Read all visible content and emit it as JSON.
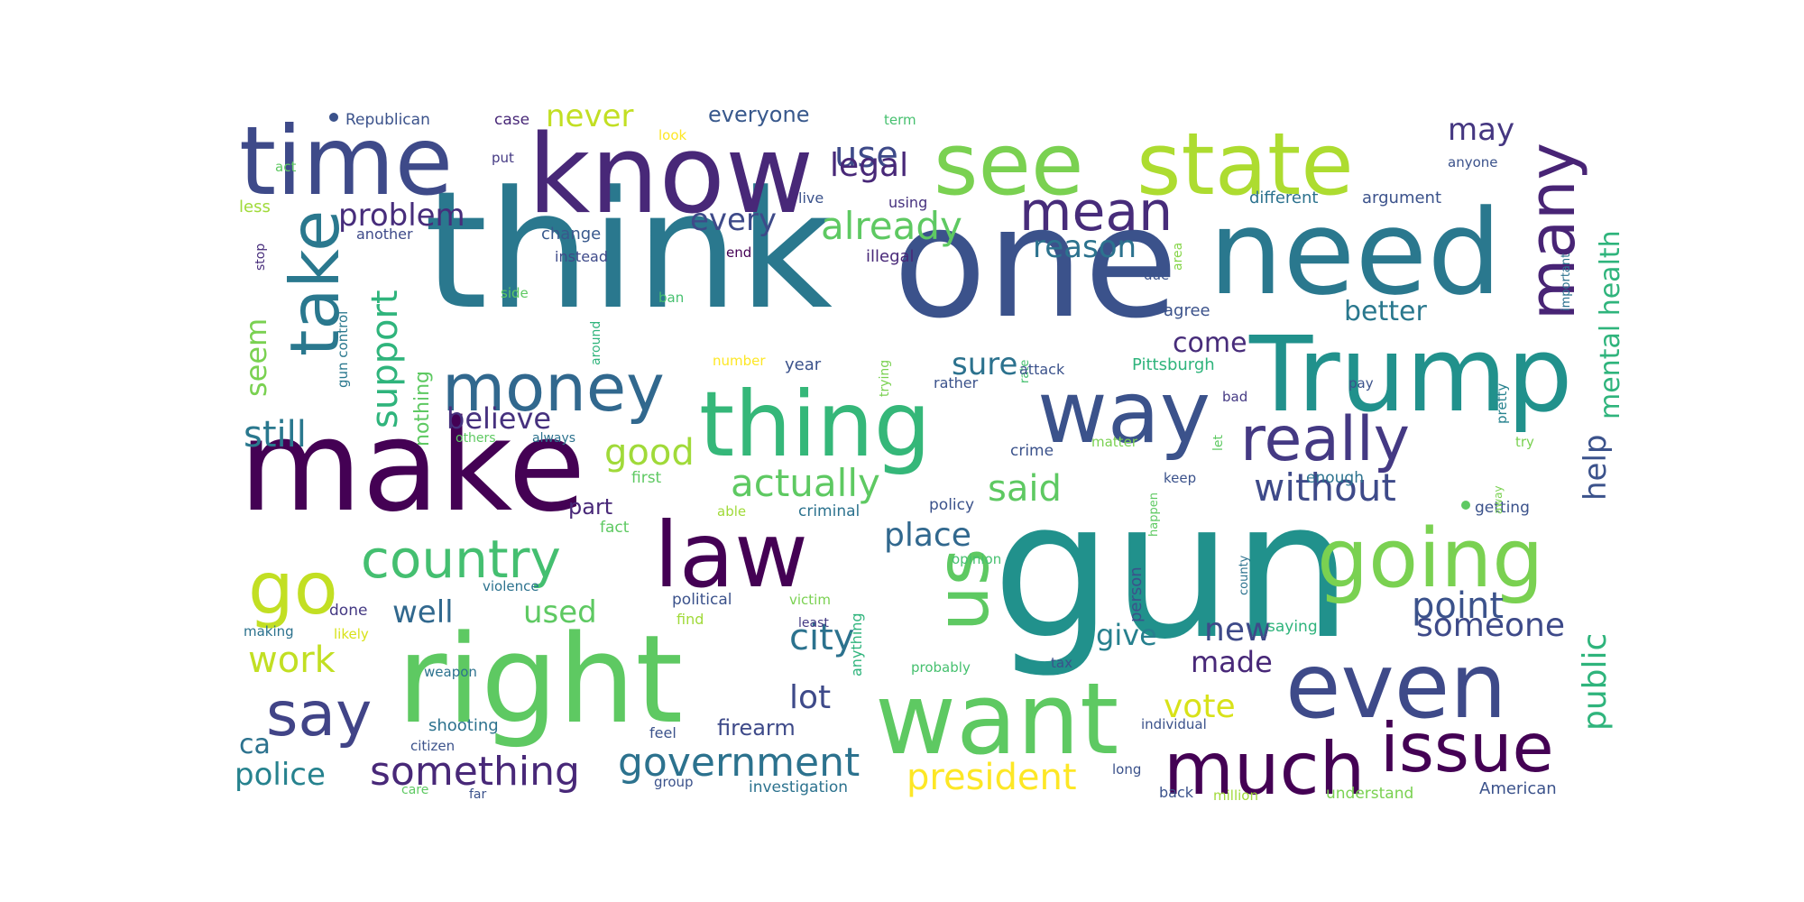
{
  "wordcloud": {
    "words": [
      {
        "text": "gun",
        "color": "#21918c"
      },
      {
        "text": "think",
        "color": "#2a788e"
      },
      {
        "text": "one",
        "color": "#3b528b"
      },
      {
        "text": "make",
        "color": "#440154"
      },
      {
        "text": "right",
        "color": "#5ec962"
      },
      {
        "text": "need",
        "color": "#2a788e"
      },
      {
        "text": "Trump",
        "color": "#21918c"
      },
      {
        "text": "know",
        "color": "#482878"
      },
      {
        "text": "see",
        "color": "#7ad151"
      },
      {
        "text": "state",
        "color": "#addc30"
      },
      {
        "text": "time",
        "color": "#3e4a89"
      },
      {
        "text": "want",
        "color": "#5ec962"
      },
      {
        "text": "thing",
        "color": "#35b779"
      },
      {
        "text": "law",
        "color": "#440154"
      },
      {
        "text": "way",
        "color": "#3b528b"
      },
      {
        "text": "even",
        "color": "#3e4a89"
      },
      {
        "text": "going",
        "color": "#7ad151"
      },
      {
        "text": "much",
        "color": "#440154"
      },
      {
        "text": "issue",
        "color": "#440154"
      },
      {
        "text": "us",
        "color": "#5ec962"
      },
      {
        "text": "take",
        "color": "#2a788e"
      },
      {
        "text": "money",
        "color": "#31688e"
      },
      {
        "text": "mean",
        "color": "#472c7a"
      },
      {
        "text": "many",
        "color": "#482475"
      },
      {
        "text": "go",
        "color": "#c2df23"
      },
      {
        "text": "say",
        "color": "#414487"
      },
      {
        "text": "really",
        "color": "#443983"
      },
      {
        "text": "country",
        "color": "#44bf70"
      },
      {
        "text": "government",
        "color": "#2c728e"
      },
      {
        "text": "something",
        "color": "#482878"
      },
      {
        "text": "president",
        "color": "#fde725"
      },
      {
        "text": "actually",
        "color": "#5ec962"
      },
      {
        "text": "without",
        "color": "#3e4a89"
      },
      {
        "text": "already",
        "color": "#5ec962"
      },
      {
        "text": "problem",
        "color": "#472d7b"
      },
      {
        "text": "good",
        "color": "#a0da39"
      },
      {
        "text": "said",
        "color": "#5ec962"
      },
      {
        "text": "support",
        "color": "#2fb47c"
      },
      {
        "text": "point",
        "color": "#3b528b"
      },
      {
        "text": "still",
        "color": "#2a788e"
      },
      {
        "text": "city",
        "color": "#2c728e"
      },
      {
        "text": "place",
        "color": "#31688e"
      },
      {
        "text": "use",
        "color": "#3e4a89"
      },
      {
        "text": "legal",
        "color": "#482878"
      },
      {
        "text": "reason",
        "color": "#2c728e"
      },
      {
        "text": "mental health",
        "color": "#2fb47c"
      },
      {
        "text": "someone",
        "color": "#3e4a89"
      },
      {
        "text": "well",
        "color": "#31688e"
      },
      {
        "text": "used",
        "color": "#5ec962"
      },
      {
        "text": "work",
        "color": "#c2df23"
      },
      {
        "text": "police",
        "color": "#26828e"
      },
      {
        "text": "lot",
        "color": "#3e4a89"
      },
      {
        "text": "vote",
        "color": "#d8e219"
      },
      {
        "text": "public",
        "color": "#2fb47c"
      },
      {
        "text": "help",
        "color": "#3b528b"
      },
      {
        "text": "believe",
        "color": "#46317e"
      },
      {
        "text": "sure",
        "color": "#2c728e"
      },
      {
        "text": "new",
        "color": "#3e4a89"
      },
      {
        "text": "made",
        "color": "#482878"
      },
      {
        "text": "give",
        "color": "#27808e"
      },
      {
        "text": "better",
        "color": "#2a788e"
      },
      {
        "text": "come",
        "color": "#472c7a"
      },
      {
        "text": "never",
        "color": "#c2df23"
      },
      {
        "text": "everyone",
        "color": "#38588c"
      },
      {
        "text": "every",
        "color": "#3e4a89"
      },
      {
        "text": "may",
        "color": "#453781"
      },
      {
        "text": "seem",
        "color": "#7ad151"
      },
      {
        "text": "ca",
        "color": "#2c728e"
      },
      {
        "text": "firearm",
        "color": "#3e4a89"
      },
      {
        "text": "part",
        "color": "#482878"
      },
      {
        "text": "nothing",
        "color": "#5ec962"
      },
      {
        "text": "Republican",
        "color": "#3b528b"
      },
      {
        "text": "case",
        "color": "#482878"
      },
      {
        "text": "term",
        "color": "#46c06f"
      },
      {
        "text": "look",
        "color": "#fde725"
      },
      {
        "text": "put",
        "color": "#443983"
      },
      {
        "text": "live",
        "color": "#3b528b"
      },
      {
        "text": "using",
        "color": "#46317e"
      },
      {
        "text": "act",
        "color": "#5ec962"
      },
      {
        "text": "less",
        "color": "#a0da39"
      },
      {
        "text": "change",
        "color": "#38588c"
      },
      {
        "text": "another",
        "color": "#3e4a89"
      },
      {
        "text": "instead",
        "color": "#3e4a89"
      },
      {
        "text": "end",
        "color": "#440154"
      },
      {
        "text": "illegal",
        "color": "#482878"
      },
      {
        "text": "different",
        "color": "#2c728e"
      },
      {
        "text": "argument",
        "color": "#3b528b"
      },
      {
        "text": "anyone",
        "color": "#3b528b"
      },
      {
        "text": "stop",
        "color": "#472d7b"
      },
      {
        "text": "gun control",
        "color": "#2a788e"
      },
      {
        "text": "side",
        "color": "#5ec962"
      },
      {
        "text": "area",
        "color": "#86d549"
      },
      {
        "text": "due",
        "color": "#3b528b"
      },
      {
        "text": "agree",
        "color": "#3b528b"
      },
      {
        "text": "ban",
        "color": "#46c06f"
      },
      {
        "text": "around",
        "color": "#2fb47c"
      },
      {
        "text": "trying",
        "color": "#7ad151"
      },
      {
        "text": "rate",
        "color": "#46c06f"
      },
      {
        "text": "important",
        "color": "#2c728e"
      },
      {
        "text": "pretty",
        "color": "#26828e"
      },
      {
        "text": "number",
        "color": "#fde725"
      },
      {
        "text": "year",
        "color": "#3b528b"
      },
      {
        "text": "rather",
        "color": "#3b528b"
      },
      {
        "text": "attack",
        "color": "#3b528b"
      },
      {
        "text": "Pittsburgh",
        "color": "#2fb47c"
      },
      {
        "text": "pay",
        "color": "#3b528b"
      },
      {
        "text": "bad",
        "color": "#443983"
      },
      {
        "text": "others",
        "color": "#5ec962"
      },
      {
        "text": "always",
        "color": "#2c728e"
      },
      {
        "text": "first",
        "color": "#5ec962"
      },
      {
        "text": "crime",
        "color": "#3b528b"
      },
      {
        "text": "matter",
        "color": "#7ad151"
      },
      {
        "text": "keep",
        "color": "#3b528b"
      },
      {
        "text": "let",
        "color": "#5ec962"
      },
      {
        "text": "enough",
        "color": "#2c728e"
      },
      {
        "text": "try",
        "color": "#7ad151"
      },
      {
        "text": "able",
        "color": "#a0da39"
      },
      {
        "text": "criminal",
        "color": "#2c728e"
      },
      {
        "text": "policy",
        "color": "#3b528b"
      },
      {
        "text": "happen",
        "color": "#5ec962"
      },
      {
        "text": "getting",
        "color": "#3b528b"
      },
      {
        "text": "away",
        "color": "#7ad151"
      },
      {
        "text": "fact",
        "color": "#5ec962"
      },
      {
        "text": "opinion",
        "color": "#46c06f"
      },
      {
        "text": "county",
        "color": "#2c728e"
      },
      {
        "text": "violence",
        "color": "#2c728e"
      },
      {
        "text": "political",
        "color": "#3b528b"
      },
      {
        "text": "victim",
        "color": "#7ad151"
      },
      {
        "text": "anything",
        "color": "#2fb47c"
      },
      {
        "text": "person",
        "color": "#3b528b"
      },
      {
        "text": "find",
        "color": "#a0da39"
      },
      {
        "text": "done",
        "color": "#443983"
      },
      {
        "text": "making",
        "color": "#2c728e"
      },
      {
        "text": "likely",
        "color": "#d8e219"
      },
      {
        "text": "saying",
        "color": "#2fb47c"
      },
      {
        "text": "least",
        "color": "#443983"
      },
      {
        "text": "weapon",
        "color": "#2c728e"
      },
      {
        "text": "probably",
        "color": "#46c06f"
      },
      {
        "text": "tax",
        "color": "#3b528b"
      },
      {
        "text": "shooting",
        "color": "#2c728e"
      },
      {
        "text": "individual",
        "color": "#3b528b"
      },
      {
        "text": "feel",
        "color": "#3b528b"
      },
      {
        "text": "citizen",
        "color": "#3b528b"
      },
      {
        "text": "long",
        "color": "#3b528b"
      },
      {
        "text": "care",
        "color": "#5ec962"
      },
      {
        "text": "far",
        "color": "#3b528b"
      },
      {
        "text": "group",
        "color": "#3b528b"
      },
      {
        "text": "investigation",
        "color": "#2c728e"
      },
      {
        "text": "back",
        "color": "#3b528b"
      },
      {
        "text": "million",
        "color": "#a0da39"
      },
      {
        "text": "understand",
        "color": "#7ad151"
      },
      {
        "text": "American",
        "color": "#3b528b"
      }
    ]
  }
}
